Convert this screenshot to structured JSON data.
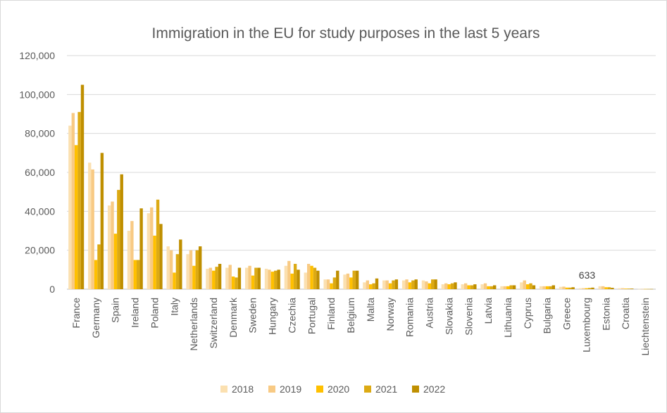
{
  "chart_data": {
    "type": "bar",
    "title": "Immigration in the EU for study purposes  in the last 5 years",
    "xlabel": "",
    "ylabel": "",
    "ylim": [
      0,
      120000
    ],
    "yticks": [
      "0",
      "20,000",
      "40,000",
      "60,000",
      "80,000",
      "100,000",
      "120,000"
    ],
    "ytick_values": [
      0,
      20000,
      40000,
      60000,
      80000,
      100000,
      120000
    ],
    "grid": true,
    "legend_position": "bottom",
    "categories": [
      "France",
      "Germany",
      "Spain",
      "Ireland",
      "Poland",
      "Italy",
      "Netherlands",
      "Switzerland",
      "Denmark",
      "Sweden",
      "Hungary",
      "Czechia",
      "Portugal",
      "Finland",
      "Belgium",
      "Malta",
      "Norway",
      "Romania",
      "Austria",
      "Slovakia",
      "Slovenia",
      "Latvia",
      "Lithuania",
      "Cyprus",
      "Bulgaria",
      "Greece",
      "Luxembourg",
      "Estonia",
      "Croatia",
      "Liechtenstein"
    ],
    "series": [
      {
        "name": "2018",
        "color": "#fbe0b0",
        "values": [
          84000,
          65000,
          43000,
          30000,
          39000,
          22000,
          18000,
          10500,
          11000,
          11000,
          10500,
          12000,
          8500,
          5000,
          7500,
          3500,
          4500,
          4500,
          4500,
          2500,
          2500,
          2500,
          1500,
          3500,
          1500,
          1200,
          500,
          1500,
          500,
          100
        ]
      },
      {
        "name": "2019",
        "color": "#f8ca84",
        "values": [
          90500,
          61500,
          45000,
          35000,
          42000,
          20000,
          20000,
          11000,
          12500,
          12000,
          10000,
          14500,
          13000,
          5000,
          8000,
          4500,
          4500,
          5000,
          4000,
          3000,
          3000,
          3000,
          1500,
          4500,
          1500,
          1300,
          500,
          1500,
          500,
          100
        ]
      },
      {
        "name": "2020",
        "color": "#ffc000",
        "values": [
          74000,
          15000,
          28500,
          15000,
          27500,
          8500,
          12000,
          9500,
          6500,
          7000,
          9000,
          8000,
          12000,
          3000,
          6000,
          2500,
          3000,
          3500,
          3000,
          2500,
          2000,
          1500,
          1500,
          2500,
          1500,
          800,
          500,
          1000,
          300,
          100
        ]
      },
      {
        "name": "2021",
        "color": "#dcaa14",
        "values": [
          91000,
          23000,
          51000,
          15000,
          46000,
          18000,
          20000,
          11500,
          6000,
          11000,
          9500,
          13000,
          11000,
          6000,
          9500,
          3000,
          4500,
          4500,
          5000,
          3000,
          2000,
          1500,
          2000,
          3000,
          1500,
          800,
          633,
          1000,
          300,
          100
        ]
      },
      {
        "name": "2022",
        "color": "#bf8f00",
        "values": [
          105000,
          70000,
          59000,
          41500,
          33500,
          25500,
          22000,
          13000,
          11000,
          11000,
          10000,
          10000,
          9500,
          9500,
          9500,
          5500,
          5000,
          5000,
          5000,
          3500,
          2500,
          2000,
          2000,
          2000,
          2000,
          1000,
          800,
          700,
          300,
          100
        ]
      }
    ],
    "annotations": [
      {
        "text": "633",
        "category": "Luxembourg"
      }
    ]
  }
}
